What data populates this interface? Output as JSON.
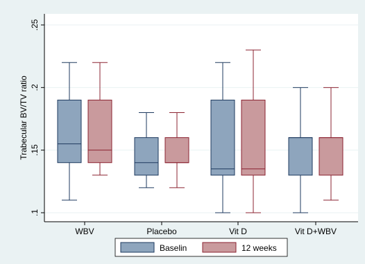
{
  "chart_data": {
    "type": "box",
    "ylabel": "Trabecular BV/TV ratio",
    "ylim": [
      0.1,
      0.25
    ],
    "yticks": [
      0.1,
      0.15,
      0.2,
      0.25
    ],
    "ytick_labels": [
      ".1",
      ".15",
      ".2",
      ".25"
    ],
    "grid": "horizontal",
    "legend_position": "bottom",
    "categories": [
      "WBV",
      "Placebo",
      "Vit D",
      "Vit D+WBV"
    ],
    "series": [
      {
        "name": "Baselin",
        "color": "#8ea5bd",
        "boxes": [
          {
            "min": 0.11,
            "q1": 0.14,
            "median": 0.155,
            "q3": 0.19,
            "max": 0.22
          },
          {
            "min": 0.12,
            "q1": 0.13,
            "median": 0.14,
            "q3": 0.16,
            "max": 0.18
          },
          {
            "min": 0.1,
            "q1": 0.13,
            "median": 0.135,
            "q3": 0.19,
            "max": 0.22
          },
          {
            "min": 0.1,
            "q1": 0.13,
            "median": 0.16,
            "q3": 0.16,
            "max": 0.2
          }
        ]
      },
      {
        "name": "12 weeks",
        "color": "#c99a9d",
        "boxes": [
          {
            "min": 0.13,
            "q1": 0.14,
            "median": 0.15,
            "q3": 0.19,
            "max": 0.22
          },
          {
            "min": 0.12,
            "q1": 0.14,
            "median": 0.14,
            "q3": 0.16,
            "max": 0.18
          },
          {
            "min": 0.1,
            "q1": 0.13,
            "median": 0.135,
            "q3": 0.19,
            "max": 0.23
          },
          {
            "min": 0.11,
            "q1": 0.13,
            "median": 0.16,
            "q3": 0.16,
            "max": 0.2
          }
        ]
      }
    ],
    "series_line_colors": [
      "#1e3a5f",
      "#8b2331"
    ]
  }
}
